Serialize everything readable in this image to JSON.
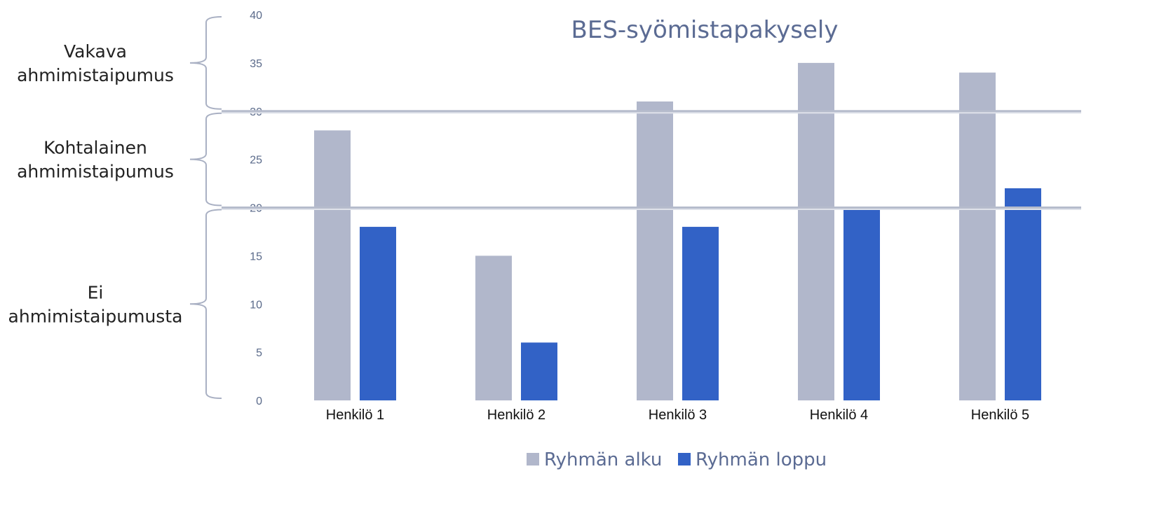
{
  "chart_data": {
    "type": "bar",
    "title": "BES-syömistapakysely",
    "categories": [
      "Henkilö 1",
      "Henkilö 2",
      "Henkilö 3",
      "Henkilö 4",
      "Henkilö 5"
    ],
    "series": [
      {
        "name": "Ryhmän alku",
        "values": [
          28,
          15,
          31,
          35,
          34
        ],
        "color": "#b1b7cb"
      },
      {
        "name": "Ryhmän loppu",
        "values": [
          18,
          6,
          18,
          20,
          22
        ],
        "color": "#3262c6"
      }
    ],
    "ylim": [
      0,
      40
    ],
    "yticks": [
      0,
      5,
      10,
      15,
      20,
      25,
      30,
      35,
      40
    ],
    "threshold_lines": [
      20,
      30
    ],
    "threshold_color": "#b6bccc",
    "bands": [
      {
        "label_lines": [
          "Vakava",
          "ahmimistaipumus"
        ],
        "from": 30,
        "to": 40
      },
      {
        "label_lines": [
          "Kohtalainen",
          "ahmimistaipumus"
        ],
        "from": 20,
        "to": 30
      },
      {
        "label_lines": [
          "Ei",
          "ahmimistaipumusta"
        ],
        "from": 0,
        "to": 20
      }
    ],
    "legend_position": "bottom",
    "grid": false
  }
}
